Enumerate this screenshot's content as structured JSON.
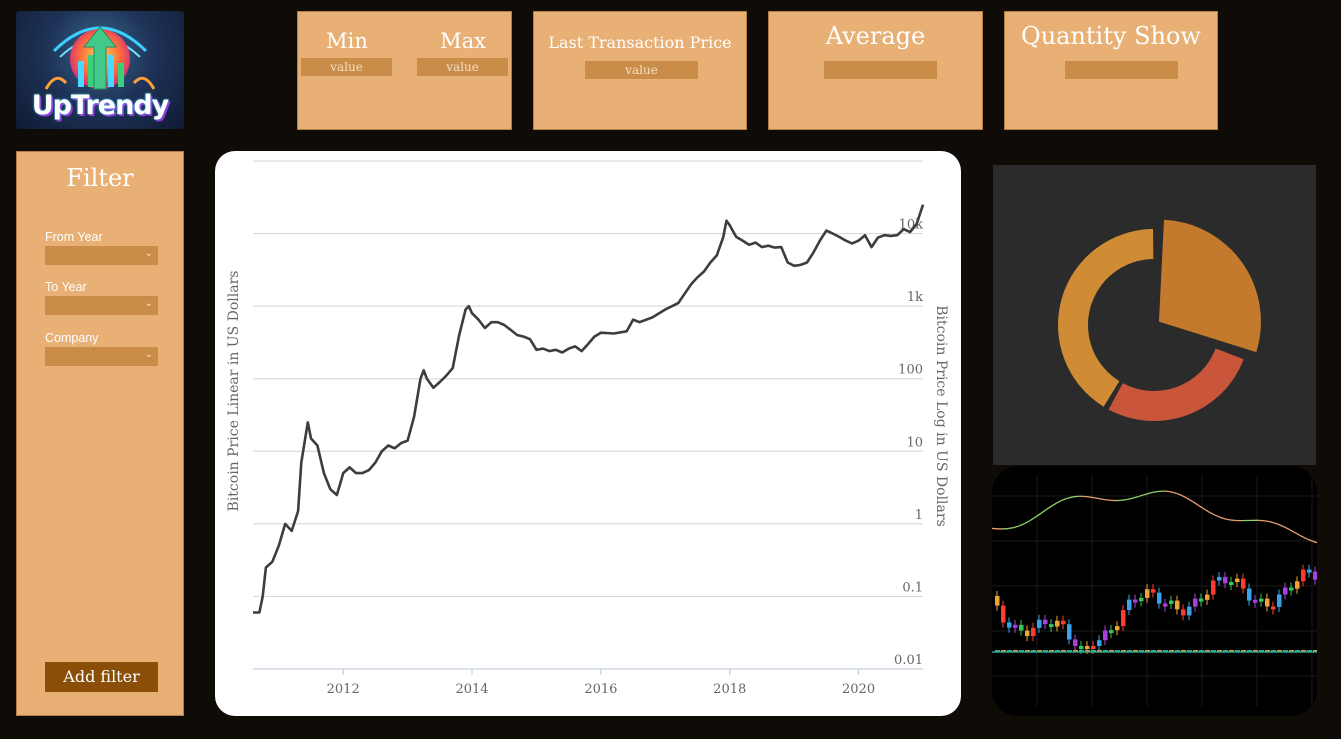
{
  "brand": {
    "name": "UpTrendy"
  },
  "kpis": {
    "min": {
      "label": "Min",
      "value": "value"
    },
    "max": {
      "label": "Max",
      "value": "value"
    },
    "last": {
      "label": "Last Transaction Price",
      "value": "value"
    },
    "average": {
      "label": "Average",
      "value": ""
    },
    "quantity": {
      "label": "Quantity Show",
      "value": ""
    }
  },
  "filter": {
    "title": "Filter",
    "fields": [
      {
        "label": "From Year",
        "value": ""
      },
      {
        "label": "To Year",
        "value": ""
      },
      {
        "label": "Company",
        "value": ""
      }
    ],
    "button_label": "Add filter"
  },
  "colors": {
    "card": "#e8b074",
    "value_box": "#c98c49",
    "button": "#8b4e09",
    "line": "#3d3d3d",
    "donut": [
      "#c47a2c",
      "#c9553a",
      "#d08c35"
    ]
  },
  "chart_data": [
    {
      "type": "line",
      "title": "",
      "xlabel": "",
      "ylabel": "Bitcoin Price Linear in US Dollars",
      "ylabel_right": "Bitcoin Price Log in US Dollars",
      "yscale": "log",
      "xlim": [
        2010.6,
        2021.0
      ],
      "ylim": [
        0.01,
        100000
      ],
      "xticks": [
        "2012",
        "2014",
        "2016",
        "2018",
        "2020"
      ],
      "xtick_values": [
        2012,
        2014,
        2016,
        2018,
        2020
      ],
      "yticks": [
        "0.01",
        "0.1",
        "1",
        "10",
        "100",
        "1k",
        "10k"
      ],
      "ytick_values": [
        0.01,
        0.1,
        1,
        10,
        100,
        1000,
        10000
      ],
      "grid": true,
      "series": [
        {
          "x": [
            2010.6,
            2010.7,
            2010.75,
            2010.8,
            2010.9,
            2011.0,
            2011.1,
            2011.2,
            2011.3,
            2011.35,
            2011.45,
            2011.5,
            2011.6,
            2011.7,
            2011.8,
            2011.9,
            2011.95,
            2012.0,
            2012.1,
            2012.2,
            2012.3,
            2012.4,
            2012.5,
            2012.6,
            2012.7,
            2012.8,
            2012.9,
            2013.0,
            2013.1,
            2013.2,
            2013.25,
            2013.3,
            2013.4,
            2013.5,
            2013.6,
            2013.7,
            2013.8,
            2013.9,
            2013.95,
            2014.0,
            2014.1,
            2014.2,
            2014.3,
            2014.4,
            2014.5,
            2014.6,
            2014.7,
            2014.8,
            2014.9,
            2015.0,
            2015.1,
            2015.2,
            2015.3,
            2015.4,
            2015.5,
            2015.6,
            2015.7,
            2015.8,
            2015.9,
            2016.0,
            2016.2,
            2016.4,
            2016.5,
            2016.6,
            2016.8,
            2017.0,
            2017.2,
            2017.4,
            2017.5,
            2017.6,
            2017.7,
            2017.8,
            2017.9,
            2017.95,
            2018.0,
            2018.1,
            2018.2,
            2018.3,
            2018.4,
            2018.5,
            2018.6,
            2018.7,
            2018.8,
            2018.9,
            2019.0,
            2019.1,
            2019.2,
            2019.3,
            2019.4,
            2019.5,
            2019.6,
            2019.7,
            2019.8,
            2019.9,
            2020.0,
            2020.1,
            2020.2,
            2020.3,
            2020.4,
            2020.5,
            2020.6,
            2020.7,
            2020.8,
            2020.9,
            2021.0
          ],
          "values": [
            0.06,
            0.06,
            0.1,
            0.25,
            0.3,
            0.5,
            1.0,
            0.8,
            1.5,
            7.0,
            25,
            15,
            12,
            5,
            3,
            2.5,
            3.5,
            5,
            6,
            5,
            5,
            5.5,
            7,
            10,
            12,
            11,
            13,
            14,
            30,
            100,
            130,
            100,
            75,
            90,
            110,
            140,
            400,
            900,
            1000,
            800,
            650,
            500,
            600,
            600,
            550,
            470,
            400,
            380,
            350,
            250,
            260,
            240,
            250,
            230,
            260,
            280,
            240,
            300,
            380,
            430,
            420,
            450,
            650,
            600,
            700,
            900,
            1100,
            2000,
            2500,
            3000,
            4000,
            5000,
            9000,
            15000,
            13000,
            9000,
            8000,
            7000,
            7500,
            6500,
            6800,
            6400,
            6500,
            4000,
            3600,
            3700,
            4000,
            5500,
            8000,
            11000,
            10000,
            9000,
            8000,
            7300,
            8000,
            9500,
            6500,
            8800,
            9500,
            9300,
            9500,
            11500,
            10500,
            13500,
            25000
          ]
        }
      ]
    },
    {
      "type": "pie",
      "style": "donut",
      "slices": [
        {
          "value": 30,
          "color": "#c47a2c"
        },
        {
          "value": 28,
          "color": "#c9553a"
        },
        {
          "value": 42,
          "color": "#d08c35"
        }
      ]
    },
    {
      "type": "candlestick",
      "up_color": "#f2a134",
      "down_color": "#ff3b30",
      "alt_colors": [
        "#3aa3e8",
        "#a93fe0",
        "#34c759"
      ],
      "line_color_up": "#8fd46a",
      "line_color_down": "#e8a070"
    }
  ]
}
